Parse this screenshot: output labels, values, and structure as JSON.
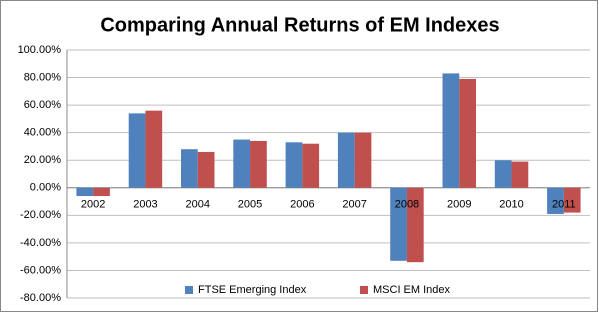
{
  "chart_data": {
    "type": "bar",
    "title": "Comparing Annual Returns of EM Indexes",
    "categories": [
      "2002",
      "2003",
      "2004",
      "2005",
      "2006",
      "2007",
      "2008",
      "2009",
      "2010",
      "2011"
    ],
    "series": [
      {
        "name": "FTSE Emerging Index",
        "color": "#4f81bd",
        "values": [
          -6,
          54,
          28,
          35,
          33,
          40,
          -53,
          83,
          20,
          -19
        ]
      },
      {
        "name": "MSCI EM Index",
        "color": "#c0504d",
        "values": [
          -6,
          56,
          26,
          34,
          32,
          40,
          -54,
          79,
          19,
          -18
        ]
      }
    ],
    "ylim": [
      -80,
      100
    ],
    "yticks": [
      {
        "value": -80,
        "label": "-80.00%"
      },
      {
        "value": -60,
        "label": "-60.00%"
      },
      {
        "value": -40,
        "label": "-40.00%"
      },
      {
        "value": -20,
        "label": "-20.00%"
      },
      {
        "value": 0,
        "label": "0.00%"
      },
      {
        "value": 20,
        "label": "20.00%"
      },
      {
        "value": 40,
        "label": "40.00%"
      },
      {
        "value": 60,
        "label": "60.00%"
      },
      {
        "value": 80,
        "label": "80.00%"
      },
      {
        "value": 100,
        "label": "100.00%"
      }
    ],
    "grid": true,
    "legend": "bottom"
  }
}
